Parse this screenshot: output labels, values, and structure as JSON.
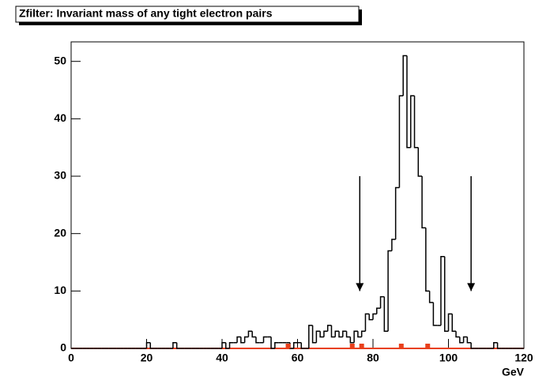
{
  "chart_data": {
    "type": "histogram",
    "title": "Zfilter: Invariant mass of any tight electron pairs",
    "x_label": "GeV",
    "color": "#000000",
    "bins": [
      0,
      1,
      2,
      3,
      4,
      5,
      6,
      7,
      8,
      9,
      10,
      11,
      12,
      13,
      14,
      15,
      16,
      17,
      18,
      19,
      20,
      21,
      22,
      23,
      24,
      25,
      26,
      27,
      28,
      29,
      30,
      31,
      32,
      33,
      34,
      35,
      36,
      37,
      38,
      39,
      40,
      41,
      42,
      43,
      44,
      45,
      46,
      47,
      48,
      49,
      50,
      51,
      52,
      53,
      54,
      55,
      56,
      57,
      58,
      59,
      60,
      61,
      62,
      63,
      64,
      65,
      66,
      67,
      68,
      69,
      70,
      71,
      72,
      73,
      74,
      75,
      76,
      77,
      78,
      79,
      80,
      81,
      82,
      83,
      84,
      85,
      86,
      87,
      88,
      89,
      90,
      91,
      92,
      93,
      94,
      95,
      96,
      97,
      98,
      99,
      100,
      101,
      102,
      103,
      104,
      105,
      106,
      107,
      108,
      109,
      110,
      111,
      112,
      113,
      114,
      115,
      116,
      117,
      118,
      119,
      120
    ],
    "values": [
      0,
      0,
      0,
      0,
      0,
      0,
      0,
      0,
      0,
      0,
      0,
      0,
      0,
      0,
      0,
      0,
      0,
      0,
      0,
      0,
      1,
      0,
      0,
      0,
      0,
      0,
      0,
      1,
      0,
      0,
      0,
      0,
      0,
      0,
      0,
      0,
      0,
      0,
      0,
      0,
      1,
      0,
      1,
      1,
      2,
      1,
      2,
      3,
      2,
      1,
      1,
      2,
      2,
      0,
      1,
      1,
      1,
      1,
      0,
      1,
      1,
      0,
      0,
      4,
      1,
      3,
      2,
      3,
      4,
      2,
      3,
      2,
      3,
      2,
      1,
      3,
      2,
      3,
      6,
      5,
      6,
      7,
      9,
      3,
      17,
      19,
      28,
      44,
      51,
      35,
      44,
      35,
      30,
      21,
      10,
      8,
      4,
      4,
      16,
      3,
      6,
      3,
      2,
      1,
      2,
      1,
      0,
      0,
      0,
      0,
      0,
      0,
      1,
      0,
      0,
      0,
      0,
      0,
      0,
      0
    ],
    "markers": {
      "color": "#e8401c",
      "x": [
        57.5,
        74.5,
        77,
        87.5,
        94.5
      ]
    },
    "arrows": [
      {
        "x": 76.5,
        "y": [
          30,
          10
        ]
      },
      {
        "x": 106,
        "y": [
          30,
          10
        ]
      }
    ],
    "xlim": [
      0,
      120
    ],
    "ylim": [
      0,
      53.4
    ],
    "xticks": [
      0,
      20,
      40,
      60,
      80,
      100,
      120
    ],
    "yticks": [
      0,
      10,
      20,
      30,
      40,
      50
    ]
  }
}
